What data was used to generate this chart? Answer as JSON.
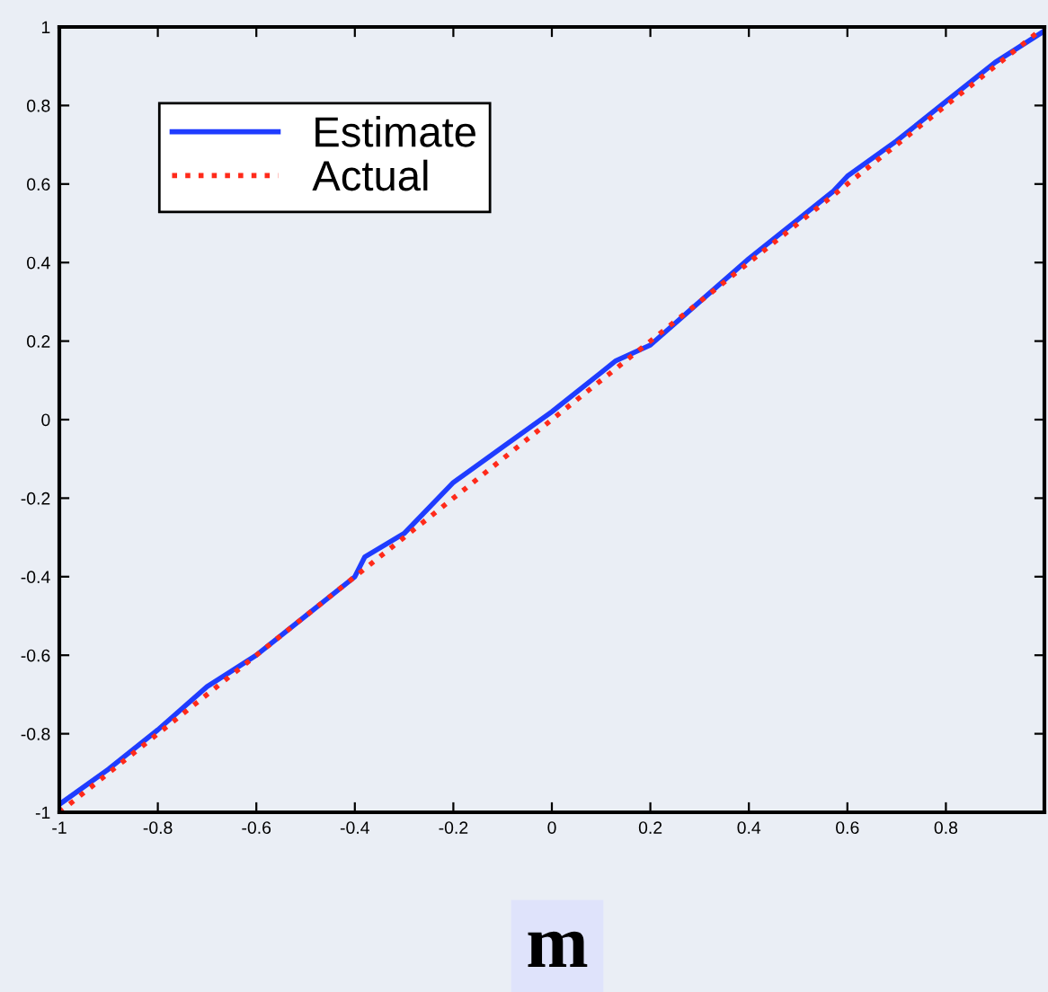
{
  "chart_data": {
    "type": "line",
    "xlabel": "m",
    "series": [
      {
        "name": "Estimate",
        "color": "#1f3cff",
        "line_style": "solid",
        "x": [
          -1,
          -0.9,
          -0.8,
          -0.7,
          -0.6,
          -0.5,
          -0.4,
          -0.38,
          -0.3,
          -0.2,
          -0.1,
          0,
          0.1,
          0.13,
          0.2,
          0.3,
          0.4,
          0.5,
          0.55,
          0.57,
          0.6,
          0.7,
          0.8,
          0.9,
          1
        ],
        "values": [
          -0.98,
          -0.89,
          -0.79,
          -0.68,
          -0.6,
          -0.5,
          -0.4,
          -0.35,
          -0.29,
          -0.16,
          -0.07,
          0.02,
          0.12,
          0.15,
          0.19,
          0.3,
          0.41,
          0.51,
          0.56,
          0.58,
          0.62,
          0.71,
          0.81,
          0.91,
          0.99
        ]
      },
      {
        "name": "Actual",
        "color": "#ff2a1a",
        "line_style": "dotted",
        "x": [
          -1,
          1
        ],
        "values": [
          -1,
          1
        ]
      }
    ],
    "xlim": [
      -1,
      1
    ],
    "ylim": [
      -1,
      1
    ],
    "xticks": [
      -1,
      -0.8,
      -0.6,
      -0.4,
      -0.2,
      0,
      0.2,
      0.4,
      0.6,
      0.8,
      {
        "value": 1,
        "label": null
      }
    ],
    "yticks": [
      -1,
      -0.8,
      -0.6,
      -0.4,
      -0.2,
      0,
      0.2,
      0.4,
      0.6,
      0.8,
      1
    ],
    "grid": false,
    "legend": "top left",
    "marker": "none"
  }
}
